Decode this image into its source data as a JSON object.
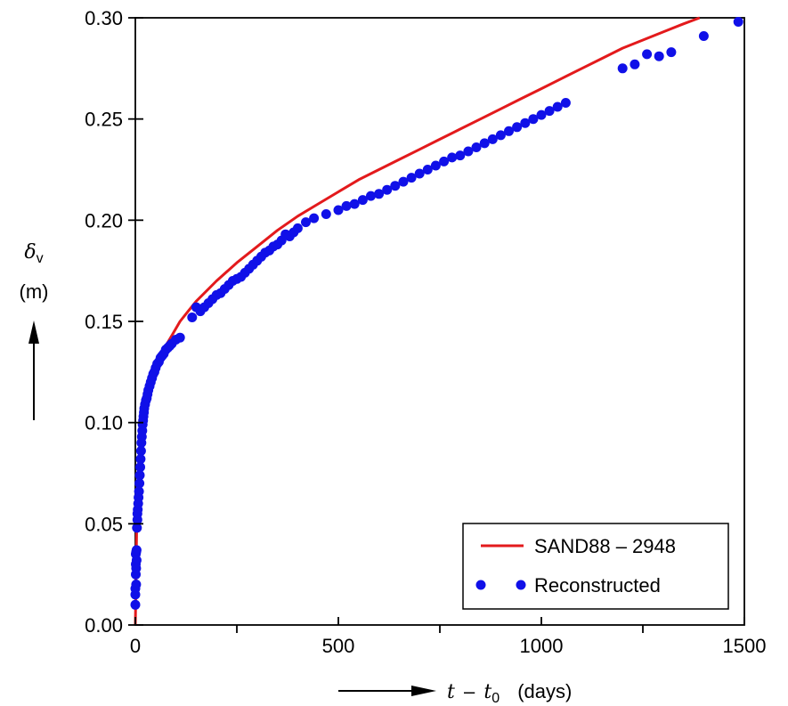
{
  "chart_data": {
    "type": "scatter",
    "xlim": [
      0,
      1500
    ],
    "ylim": [
      0,
      0.3
    ],
    "x_ticks": [
      0,
      500,
      1000,
      1500
    ],
    "x_tick_labels": [
      "0",
      "500",
      "1000",
      "1500"
    ],
    "y_ticks": [
      0,
      0.05,
      0.1,
      0.15,
      0.2,
      0.25,
      0.3
    ],
    "y_tick_labels": [
      "0.00",
      "0.05",
      "0.10",
      "0.15",
      "0.20",
      "0.25",
      "0.30"
    ],
    "x_minor_ticks": [
      250,
      750,
      1250
    ],
    "ylabel": {
      "symbol": "δ",
      "subscript": "v",
      "unit": "(m)"
    },
    "xlabel": {
      "t": "t",
      "minus": "–",
      "t0": "t",
      "t0_sub": "0",
      "unit": "(days)"
    },
    "grid": false,
    "legend_position": "bottom-right",
    "series": [
      {
        "name": "SAND88 – 2948",
        "kind": "line",
        "color": "#e31a1c",
        "x": [
          0,
          1,
          2,
          3,
          5,
          8,
          12,
          16,
          20,
          25,
          30,
          40,
          50,
          60,
          75,
          90,
          110,
          130,
          150,
          175,
          200,
          250,
          300,
          350,
          400,
          450,
          500,
          550,
          600,
          650,
          700,
          750,
          800,
          850,
          900,
          950,
          1000,
          1050,
          1100,
          1150,
          1200,
          1250,
          1300,
          1350,
          1390
        ],
        "y": [
          0,
          0.015,
          0.03,
          0.045,
          0.062,
          0.078,
          0.09,
          0.098,
          0.104,
          0.11,
          0.114,
          0.121,
          0.127,
          0.132,
          0.138,
          0.143,
          0.15,
          0.155,
          0.16,
          0.165,
          0.17,
          0.179,
          0.187,
          0.195,
          0.202,
          0.208,
          0.214,
          0.22,
          0.225,
          0.23,
          0.235,
          0.24,
          0.245,
          0.25,
          0.255,
          0.26,
          0.265,
          0.27,
          0.275,
          0.28,
          0.285,
          0.289,
          0.293,
          0.297,
          0.3
        ]
      },
      {
        "name": "Reconstructed",
        "kind": "scatter",
        "color": "#1010e8",
        "x": [
          0,
          0,
          0,
          1,
          1,
          1,
          2,
          2,
          2,
          3,
          3,
          4,
          5,
          5,
          6,
          7,
          8,
          9,
          10,
          11,
          12,
          13,
          14,
          15,
          16,
          17,
          18,
          19,
          20,
          21,
          22,
          24,
          26,
          28,
          30,
          32,
          35,
          38,
          41,
          44,
          47,
          50,
          54,
          58,
          62,
          66,
          70,
          75,
          80,
          85,
          90,
          100,
          110,
          140,
          150,
          160,
          170,
          180,
          190,
          200,
          210,
          220,
          230,
          240,
          250,
          260,
          270,
          280,
          290,
          300,
          310,
          320,
          330,
          340,
          350,
          360,
          370,
          380,
          390,
          400,
          420,
          440,
          470,
          500,
          520,
          540,
          560,
          580,
          600,
          620,
          640,
          660,
          680,
          700,
          720,
          740,
          760,
          780,
          800,
          820,
          840,
          860,
          880,
          900,
          920,
          940,
          960,
          980,
          1000,
          1020,
          1040,
          1060,
          1200,
          1230,
          1260,
          1290,
          1320,
          1400,
          1485
        ],
        "y": [
          0.01,
          0.015,
          0.018,
          0.025,
          0.03,
          0.035,
          0.02,
          0.028,
          0.036,
          0.032,
          0.037,
          0.048,
          0.052,
          0.055,
          0.057,
          0.06,
          0.063,
          0.066,
          0.07,
          0.074,
          0.078,
          0.082,
          0.086,
          0.09,
          0.093,
          0.096,
          0.099,
          0.101,
          0.103,
          0.105,
          0.107,
          0.109,
          0.111,
          0.112,
          0.114,
          0.116,
          0.118,
          0.12,
          0.122,
          0.124,
          0.125,
          0.127,
          0.129,
          0.13,
          0.132,
          0.133,
          0.134,
          0.136,
          0.137,
          0.138,
          0.139,
          0.141,
          0.142,
          0.152,
          0.157,
          0.155,
          0.157,
          0.159,
          0.161,
          0.163,
          0.164,
          0.166,
          0.168,
          0.17,
          0.171,
          0.172,
          0.174,
          0.176,
          0.178,
          0.18,
          0.182,
          0.184,
          0.185,
          0.187,
          0.188,
          0.19,
          0.193,
          0.192,
          0.194,
          0.196,
          0.199,
          0.201,
          0.203,
          0.205,
          0.207,
          0.208,
          0.21,
          0.212,
          0.213,
          0.215,
          0.217,
          0.219,
          0.221,
          0.223,
          0.225,
          0.227,
          0.229,
          0.231,
          0.232,
          0.234,
          0.236,
          0.238,
          0.24,
          0.242,
          0.244,
          0.246,
          0.248,
          0.25,
          0.252,
          0.254,
          0.256,
          0.258,
          0.275,
          0.277,
          0.282,
          0.281,
          0.283,
          0.291,
          0.298
        ]
      }
    ]
  }
}
